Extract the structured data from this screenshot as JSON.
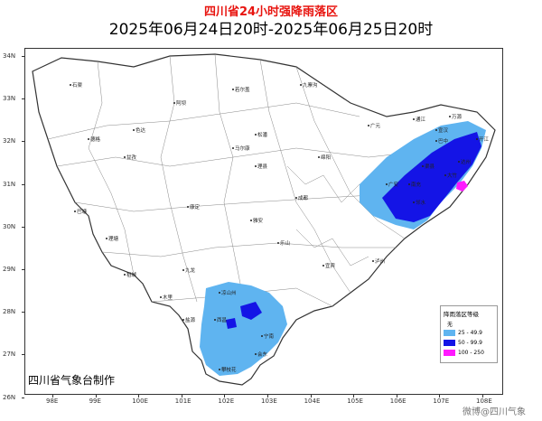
{
  "title": "四川省24小时强降雨落区",
  "subtitle": "2025年06月24日20时-2025年06月25日20时",
  "credit": "四川省气象台制作",
  "watermark": "微博@四川气象",
  "lat_labels": [
    "34N",
    "33N",
    "32N",
    "31N",
    "30N",
    "29N",
    "28N",
    "27N",
    "26N"
  ],
  "lon_labels": [
    "98E",
    "99E",
    "100E",
    "101E",
    "102E",
    "103E",
    "104E",
    "105E",
    "106E",
    "107E",
    "108E"
  ],
  "legend": {
    "title": "降雨落区等级",
    "items": [
      {
        "label": "无",
        "color": "#ffffff"
      },
      {
        "label": "25 - 49.9",
        "color": "#5fb4f0"
      },
      {
        "label": "50 - 99.9",
        "color": "#1414e6"
      },
      {
        "label": "100 - 250",
        "color": "#ff19ff"
      }
    ]
  },
  "cities": [
    "石渠",
    "若尔盖",
    "九寨沟",
    "阿坝",
    "德格",
    "色达",
    "松潘",
    "甘孜",
    "马尔康",
    "理县",
    "巴中",
    "达州",
    "广元",
    "绵阳",
    "南充",
    "成都",
    "雅安",
    "康定",
    "乐山",
    "宜宾",
    "泸州",
    "凉山州",
    "西昌",
    "攀枝花",
    "巴塘",
    "理塘",
    "稻城",
    "九龙",
    "会东",
    "木里",
    "盐源",
    "宁南",
    "开江",
    "通江",
    "万源",
    "宣汉",
    "渠县",
    "大竹",
    "邻水",
    "广安"
  ]
}
